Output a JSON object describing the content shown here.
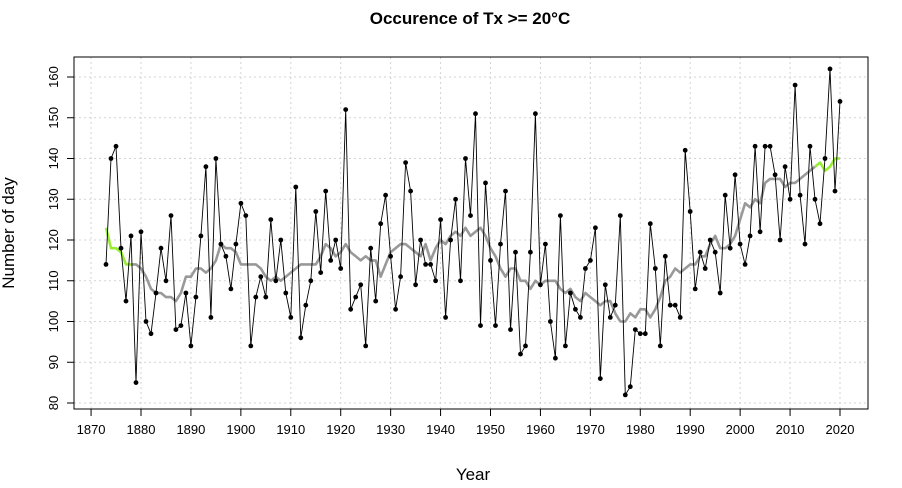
{
  "chart_data": {
    "type": "line",
    "title": "Occurence of Tx >= 20°C",
    "xlabel": "Year",
    "ylabel": "Number of day",
    "xlim": [
      1870,
      2025
    ],
    "ylim": [
      79,
      165
    ],
    "xticks": [
      1870,
      1880,
      1890,
      1900,
      1910,
      1920,
      1930,
      1940,
      1950,
      1960,
      1970,
      1980,
      1990,
      2000,
      2010,
      2020
    ],
    "yticks": [
      80,
      90,
      100,
      110,
      120,
      130,
      140,
      150,
      160
    ],
    "grid": true,
    "colors": {
      "annual": "#000000",
      "running_mean": "#999999",
      "end_segments": "#99ee33"
    },
    "series": [
      {
        "name": "Annual count",
        "style": "line+points",
        "x": [
          1873,
          1874,
          1875,
          1876,
          1877,
          1878,
          1879,
          1880,
          1881,
          1882,
          1883,
          1884,
          1885,
          1886,
          1887,
          1888,
          1889,
          1890,
          1891,
          1892,
          1893,
          1894,
          1895,
          1896,
          1897,
          1898,
          1899,
          1900,
          1901,
          1902,
          1903,
          1904,
          1905,
          1906,
          1907,
          1908,
          1909,
          1910,
          1911,
          1912,
          1913,
          1914,
          1915,
          1916,
          1917,
          1918,
          1919,
          1920,
          1921,
          1922,
          1923,
          1924,
          1925,
          1926,
          1927,
          1928,
          1929,
          1930,
          1931,
          1932,
          1933,
          1934,
          1935,
          1936,
          1937,
          1938,
          1939,
          1940,
          1941,
          1942,
          1943,
          1944,
          1945,
          1946,
          1947,
          1948,
          1949,
          1950,
          1951,
          1952,
          1953,
          1954,
          1955,
          1956,
          1957,
          1958,
          1959,
          1960,
          1961,
          1962,
          1963,
          1964,
          1965,
          1966,
          1967,
          1968,
          1969,
          1970,
          1971,
          1972,
          1973,
          1974,
          1975,
          1976,
          1977,
          1978,
          1979,
          1980,
          1981,
          1982,
          1983,
          1984,
          1985,
          1986,
          1987,
          1988,
          1989,
          1990,
          1991,
          1992,
          1993,
          1994,
          1995,
          1996,
          1997,
          1998,
          1999,
          2000,
          2001,
          2002,
          2003,
          2004,
          2005,
          2006,
          2007,
          2008,
          2009,
          2010,
          2011,
          2012,
          2013,
          2014,
          2015,
          2016,
          2017,
          2018,
          2019,
          2020
        ],
        "y": [
          114,
          140,
          143,
          118,
          105,
          121,
          85,
          122,
          100,
          97,
          107,
          118,
          110,
          126,
          98,
          99,
          107,
          94,
          106,
          121,
          138,
          101,
          140,
          119,
          116,
          108,
          119,
          129,
          126,
          94,
          106,
          111,
          106,
          125,
          110,
          120,
          107,
          101,
          133,
          96,
          104,
          110,
          127,
          112,
          132,
          115,
          120,
          113,
          152,
          103,
          106,
          109,
          94,
          118,
          105,
          124,
          131,
          116,
          103,
          111,
          139,
          132,
          109,
          120,
          114,
          114,
          110,
          125,
          101,
          120,
          130,
          110,
          140,
          126,
          151,
          99,
          134,
          115,
          99,
          119,
          132,
          98,
          117,
          92,
          94,
          117,
          151,
          109,
          119,
          100,
          91,
          126,
          94,
          107,
          103,
          101,
          113,
          115,
          123,
          86,
          109,
          101,
          104,
          126,
          82,
          84,
          98,
          97,
          97,
          124,
          113,
          94,
          116,
          104,
          104,
          101,
          142,
          127,
          108,
          117,
          113,
          120,
          117,
          107,
          131,
          118,
          136,
          119,
          114,
          121,
          143,
          122,
          143,
          143,
          136,
          120,
          138,
          130,
          158,
          131,
          119,
          143,
          130,
          124,
          140,
          162,
          132,
          154
        ]
      },
      {
        "name": "Running mean",
        "style": "line",
        "x": [
          1878,
          1879,
          1880,
          1881,
          1882,
          1883,
          1884,
          1885,
          1886,
          1887,
          1888,
          1889,
          1890,
          1891,
          1892,
          1893,
          1894,
          1895,
          1896,
          1897,
          1898,
          1899,
          1900,
          1901,
          1902,
          1903,
          1904,
          1905,
          1906,
          1907,
          1908,
          1909,
          1910,
          1911,
          1912,
          1913,
          1914,
          1915,
          1916,
          1917,
          1918,
          1919,
          1920,
          1921,
          1922,
          1923,
          1924,
          1925,
          1926,
          1927,
          1928,
          1929,
          1930,
          1931,
          1932,
          1933,
          1934,
          1935,
          1936,
          1937,
          1938,
          1939,
          1940,
          1941,
          1942,
          1943,
          1944,
          1945,
          1946,
          1947,
          1948,
          1949,
          1950,
          1951,
          1952,
          1953,
          1954,
          1955,
          1956,
          1957,
          1958,
          1959,
          1960,
          1961,
          1962,
          1963,
          1964,
          1965,
          1966,
          1967,
          1968,
          1969,
          1970,
          1971,
          1972,
          1973,
          1974,
          1975,
          1976,
          1977,
          1978,
          1979,
          1980,
          1981,
          1982,
          1983,
          1984,
          1985,
          1986,
          1987,
          1988,
          1989,
          1990,
          1991,
          1992,
          1993,
          1994,
          1995,
          1996,
          1997,
          1998,
          1999,
          2000,
          2001,
          2002,
          2003,
          2004,
          2005,
          2006,
          2007,
          2008,
          2009,
          2010,
          2011,
          2012,
          2013,
          2014,
          2015
        ],
        "y": [
          114,
          114,
          113,
          111,
          108,
          107,
          107,
          106,
          106,
          105,
          107,
          111,
          111,
          113,
          113,
          112,
          113,
          115,
          119,
          118,
          118,
          117,
          114,
          114,
          114,
          114,
          113,
          111,
          110,
          111,
          110,
          111,
          112,
          113,
          114,
          114,
          114,
          114,
          116,
          119,
          118,
          116,
          117,
          119,
          117,
          116,
          115,
          116,
          115,
          115,
          111,
          114,
          117,
          118,
          119,
          119,
          118,
          117,
          116,
          119,
          115,
          118,
          120,
          119,
          121,
          122,
          121,
          123,
          121,
          122,
          123,
          121,
          118,
          116,
          113,
          111,
          113,
          113,
          110,
          110,
          108,
          110,
          109,
          110,
          110,
          110,
          108,
          107,
          108,
          106,
          105,
          107,
          106,
          105,
          104,
          105,
          105,
          102,
          100,
          100,
          102,
          101,
          103,
          103,
          101,
          103,
          106,
          110,
          111,
          113,
          112,
          113,
          114,
          114,
          116,
          116,
          119,
          121,
          118,
          118,
          119,
          121,
          125,
          129,
          128,
          130,
          129,
          134,
          135,
          135,
          135,
          133,
          134,
          134,
          135,
          136,
          137,
          138
        ]
      },
      {
        "name": "Start segment",
        "style": "line",
        "x": [
          1873,
          1874,
          1875,
          1876,
          1877,
          1878
        ],
        "y": [
          123,
          118,
          118,
          117,
          114,
          114
        ]
      },
      {
        "name": "End segment",
        "style": "line",
        "x": [
          2015,
          2016,
          2017,
          2018,
          2019,
          2020
        ],
        "y": [
          138,
          139,
          137,
          138,
          140,
          140
        ]
      }
    ]
  }
}
